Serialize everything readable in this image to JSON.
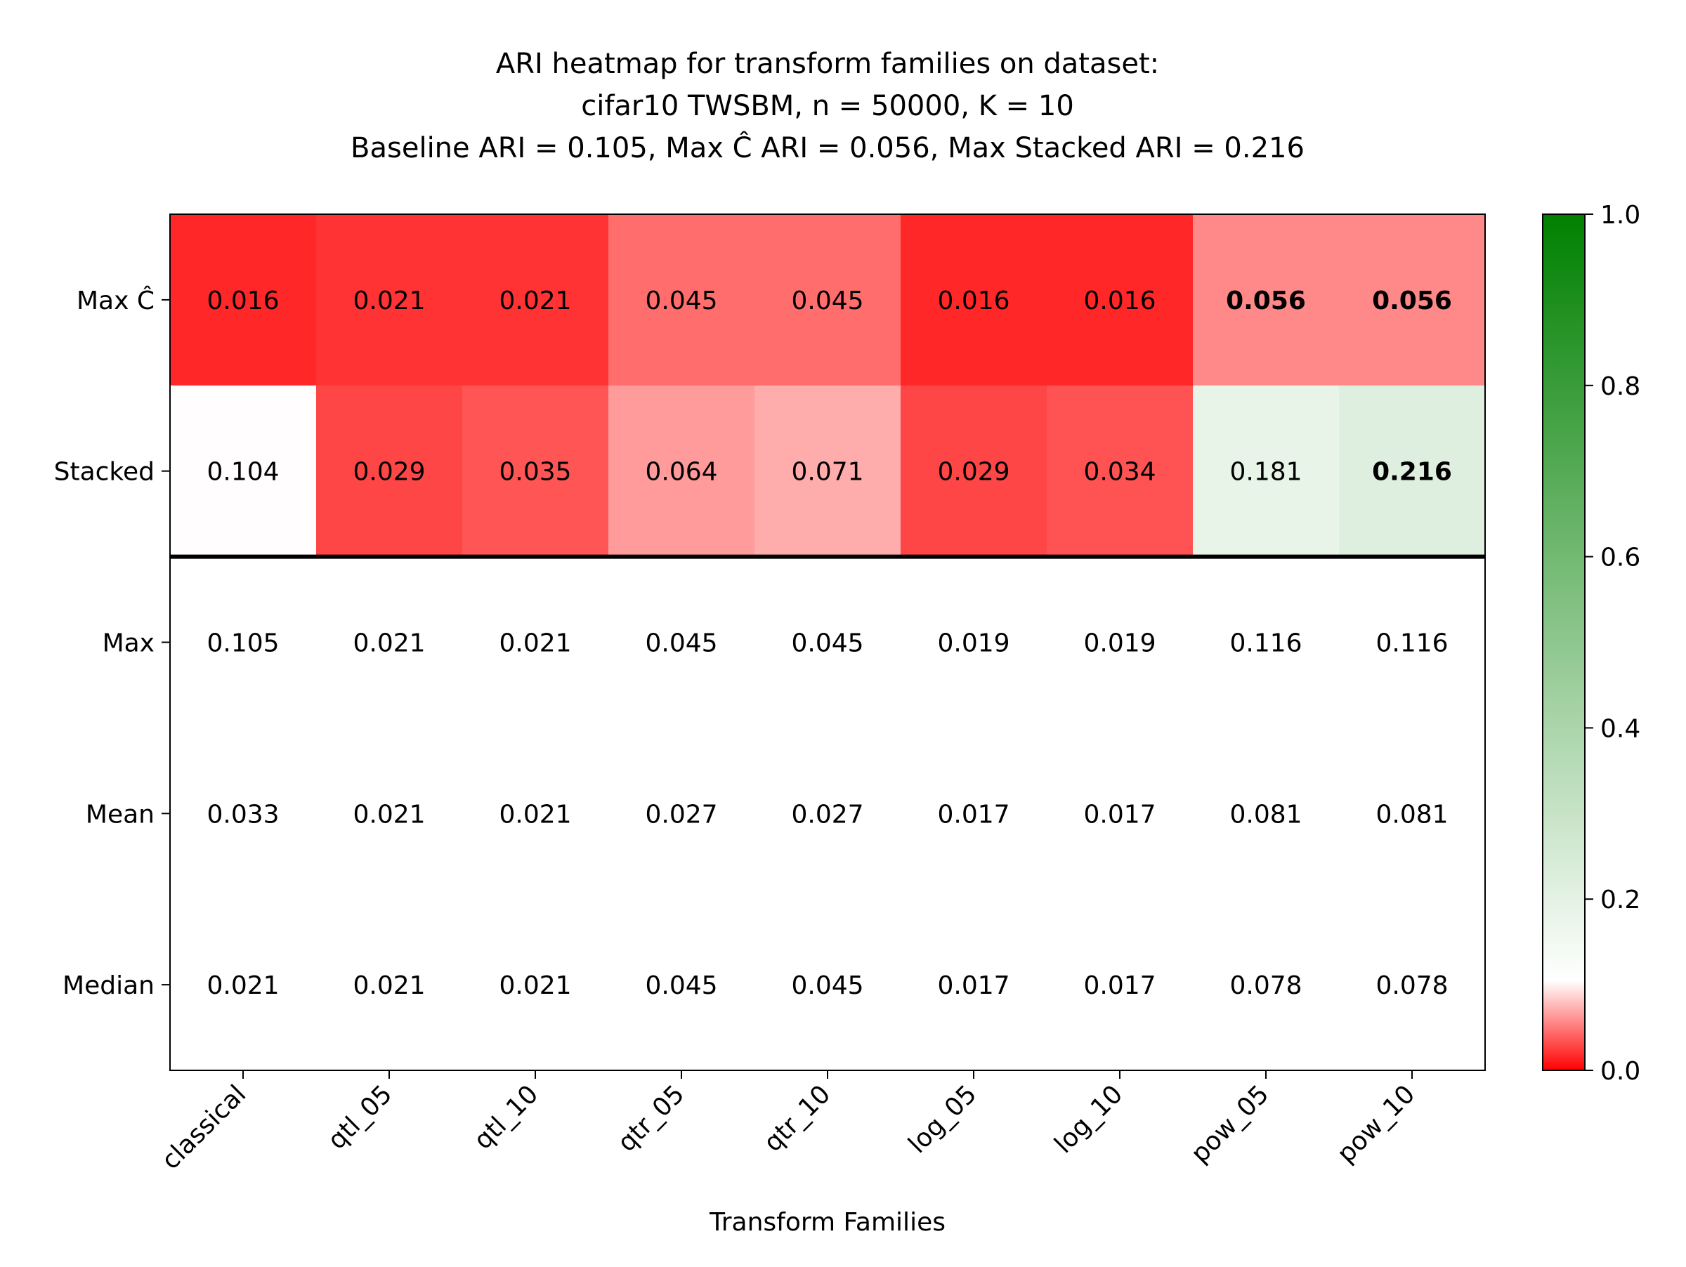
{
  "chart_data": {
    "type": "heatmap",
    "title_lines": [
      "ARI heatmap for transform families on dataset:",
      "cifar10 TWSBM, n = 50000, K = 10",
      "Baseline ARI = 0.105, Max Ĉ ARI = 0.056, Max Stacked ARI = 0.216"
    ],
    "xlabel": "Transform Families",
    "ylabel": "",
    "columns": [
      "classical",
      "qtl_05",
      "qtl_10",
      "qtr_05",
      "qtr_10",
      "log_05",
      "log_10",
      "pow_05",
      "pow_10"
    ],
    "rows": [
      {
        "label": "Max Ĉ",
        "colored": true,
        "values": [
          "0.016",
          "0.021",
          "0.021",
          "0.045",
          "0.045",
          "0.016",
          "0.016",
          "0.056",
          "0.056"
        ],
        "bold": [
          7,
          8
        ]
      },
      {
        "label": "Stacked",
        "colored": true,
        "values": [
          "0.104",
          "0.029",
          "0.035",
          "0.064",
          "0.071",
          "0.029",
          "0.034",
          "0.181",
          "0.216"
        ],
        "bold": [
          8
        ]
      },
      {
        "label": "Max",
        "colored": false,
        "values": [
          "0.105",
          "0.021",
          "0.021",
          "0.045",
          "0.045",
          "0.019",
          "0.019",
          "0.116",
          "0.116"
        ],
        "bold": []
      },
      {
        "label": "Mean",
        "colored": false,
        "values": [
          "0.033",
          "0.021",
          "0.021",
          "0.027",
          "0.027",
          "0.017",
          "0.017",
          "0.081",
          "0.081"
        ],
        "bold": []
      },
      {
        "label": "Median",
        "colored": false,
        "values": [
          "0.021",
          "0.021",
          "0.021",
          "0.045",
          "0.045",
          "0.017",
          "0.017",
          "0.078",
          "0.078"
        ],
        "bold": []
      }
    ],
    "colorbar": {
      "vmin": 0.0,
      "vmax": 1.0,
      "center": 0.105,
      "ticks": [
        "0.0",
        "0.2",
        "0.4",
        "0.6",
        "0.8",
        "1.0"
      ],
      "low_color": "#ff0000",
      "mid_color": "#ffffff",
      "high_color": "#008000"
    },
    "separator_after_row": 1,
    "grid": false
  }
}
